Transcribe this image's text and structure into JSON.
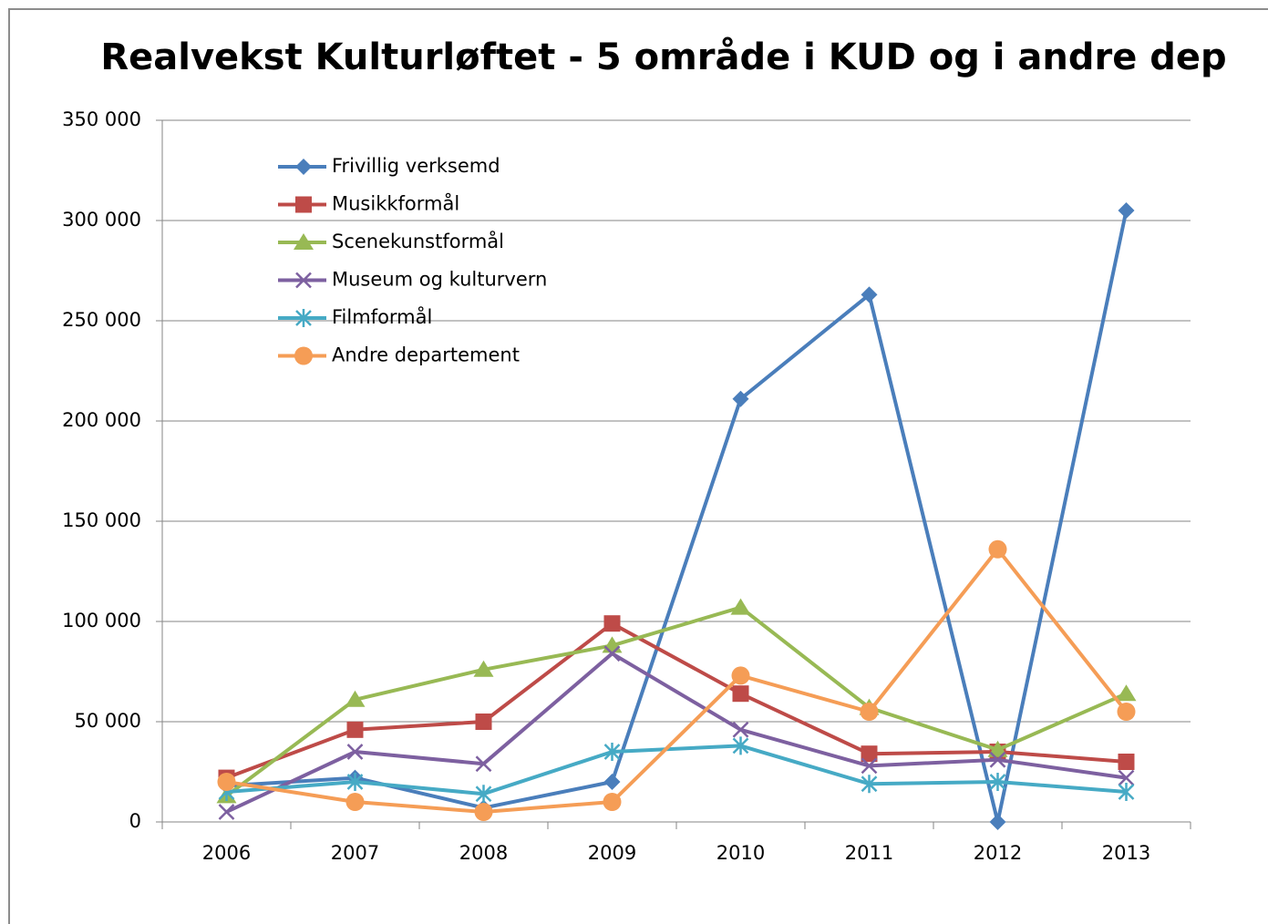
{
  "chart_data": {
    "type": "line",
    "title": "Realvekst Kulturløftet - 5 område i KUD og i andre dep",
    "categories": [
      "2006",
      "2007",
      "2008",
      "2009",
      "2010",
      "2011",
      "2012",
      "2013"
    ],
    "series": [
      {
        "name": "Frivillig verksemd",
        "color": "#4a7ebb",
        "marker": "diamond",
        "values": [
          18000,
          22000,
          7000,
          20000,
          211000,
          263000,
          0,
          305000
        ]
      },
      {
        "name": "Musikkformål",
        "color": "#be4b48",
        "marker": "square",
        "values": [
          22000,
          46000,
          50000,
          99000,
          64000,
          34000,
          35000,
          30000
        ]
      },
      {
        "name": "Scenekunstformål",
        "color": "#98b954",
        "marker": "triangle",
        "values": [
          13000,
          61000,
          76000,
          88000,
          107000,
          57000,
          36000,
          64000
        ]
      },
      {
        "name": "Museum og kulturvern",
        "color": "#7d60a0",
        "marker": "x",
        "values": [
          5000,
          35000,
          29000,
          84000,
          46000,
          28000,
          31000,
          22000
        ]
      },
      {
        "name": "Filmformål",
        "color": "#46aac5",
        "marker": "star",
        "values": [
          15000,
          20000,
          14000,
          35000,
          38000,
          19000,
          20000,
          15000
        ]
      },
      {
        "name": "Andre departement",
        "color": "#f59d56",
        "marker": "circle",
        "values": [
          20000,
          10000,
          5000,
          10000,
          73000,
          55000,
          136000,
          55000
        ]
      }
    ],
    "ylim": [
      0,
      350000
    ],
    "yticks": [
      0,
      {
        "value": 50000,
        "label": "50 000"
      },
      {
        "value": 100000,
        "label": "100 000"
      },
      {
        "value": 150000,
        "label": "150 000"
      },
      {
        "value": 200000,
        "label": "200 000"
      },
      {
        "value": 250000,
        "label": "250 000"
      },
      {
        "value": 300000,
        "label": "300 000"
      },
      {
        "value": 350000,
        "label": "350 000"
      }
    ],
    "grid": true,
    "legend": "upper left"
  }
}
